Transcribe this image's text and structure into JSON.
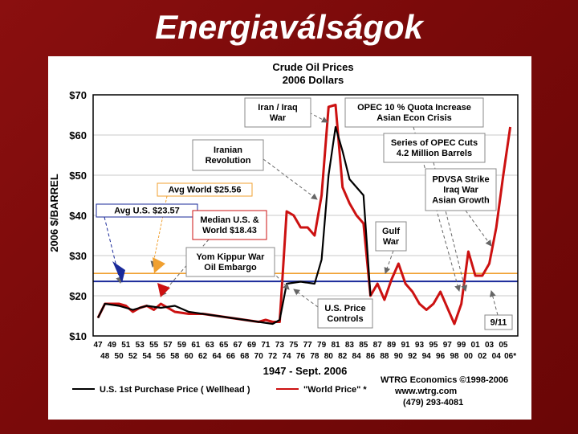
{
  "slide": {
    "title": "Energiaválságok"
  },
  "colors": {
    "us_series": "#000000",
    "world_series": "#cc1111",
    "avg_us_line": "#1a2a9a",
    "avg_world_line": "#f0a030",
    "background": "#8a0f0f"
  },
  "chart_data": {
    "type": "line",
    "title": "Crude Oil Prices",
    "subtitle": "2006 Dollars",
    "ylabel": "2006 $/BARREL",
    "xlabel": "1947 - Sept. 2006",
    "ylim": [
      10,
      70
    ],
    "xlim": [
      1947,
      2006.5
    ],
    "yticks": [
      "$10",
      "$20",
      "$30",
      "$40",
      "$50",
      "$60",
      "$70"
    ],
    "xticks_top": [
      "47",
      "49",
      "51",
      "53",
      "55",
      "57",
      "59",
      "61",
      "63",
      "65",
      "67",
      "69",
      "71",
      "73",
      "75",
      "77",
      "79",
      "81",
      "83",
      "85",
      "87",
      "89",
      "91",
      "93",
      "95",
      "97",
      "99",
      "01",
      "03",
      "05"
    ],
    "xticks_bottom": [
      "48",
      "50",
      "52",
      "54",
      "56",
      "58",
      "60",
      "62",
      "64",
      "66",
      "68",
      "70",
      "72",
      "74",
      "76",
      "78",
      "80",
      "82",
      "84",
      "86",
      "88",
      "90",
      "92",
      "94",
      "96",
      "98",
      "00",
      "02",
      "04",
      "06*"
    ],
    "series": [
      {
        "name": "U.S. 1st Purchase Price ( Wellhead )",
        "x": [
          1947,
          1948,
          1950,
          1952,
          1954,
          1956,
          1958,
          1960,
          1962,
          1964,
          1966,
          1968,
          1970,
          1972,
          1973,
          1974,
          1976,
          1978,
          1979,
          1980,
          1981,
          1982,
          1983,
          1984,
          1985,
          1986
        ],
        "y": [
          14.5,
          18,
          17.5,
          16.5,
          17.5,
          17,
          17.5,
          16,
          15.5,
          15,
          14.5,
          14,
          13.5,
          13,
          14,
          23,
          23.5,
          23,
          29,
          50,
          62,
          56,
          49,
          47,
          45,
          20
        ]
      },
      {
        "name": "\"World Price\" *",
        "x": [
          1947,
          1948,
          1950,
          1951,
          1952,
          1953,
          1954,
          1955,
          1956,
          1957,
          1958,
          1960,
          1962,
          1964,
          1966,
          1968,
          1970,
          1971,
          1972,
          1973,
          1974,
          1975,
          1976,
          1977,
          1978,
          1979,
          1980,
          1981,
          1982,
          1983,
          1984,
          1985,
          1986,
          1987,
          1988,
          1989,
          1990,
          1991,
          1992,
          1993,
          1994,
          1995,
          1996,
          1997,
          1998,
          1999,
          2000,
          2001,
          2002,
          2003,
          2004,
          2005,
          2006
        ],
        "y": [
          14.5,
          18,
          18,
          17.5,
          16,
          17,
          17.5,
          16.5,
          18,
          17,
          16,
          15.5,
          15.5,
          15,
          14.5,
          14,
          13.5,
          14,
          13.5,
          13.5,
          41,
          40,
          37,
          37,
          35,
          45,
          67,
          67.5,
          47,
          43,
          40,
          38,
          20,
          23,
          19,
          24,
          28,
          23,
          21,
          18,
          16.5,
          18,
          21,
          17,
          13,
          18,
          31,
          25,
          25,
          28,
          37,
          50,
          62
        ]
      }
    ],
    "averages": [
      {
        "label": "Avg U.S. $23.57",
        "value": 23.57
      },
      {
        "label": "Avg World $25.56",
        "value": 25.56
      }
    ],
    "annotations": [
      {
        "text": [
          "Iran / Iraq",
          "War"
        ],
        "target_year": 1980
      },
      {
        "text": [
          "OPEC 10 % Quota Increase",
          "Asian Econ Crisis"
        ],
        "target_year": 1998
      },
      {
        "text": [
          "Series of OPEC Cuts",
          "4.2 Million Barrels"
        ],
        "target_year": 1999
      },
      {
        "text": [
          "Iranian",
          "Revolution"
        ],
        "target_year": 1979
      },
      {
        "text": [
          "PDVSA Strike",
          "Iraq War",
          "Asian Growth"
        ],
        "target_year": 2003
      },
      {
        "text": [
          "Avg World $25.56"
        ],
        "target_year": 1955
      },
      {
        "text": [
          "Avg U.S. $23.57"
        ],
        "target_year": 1950
      },
      {
        "text": [
          "Median U.S. &",
          "World $18.43"
        ],
        "target_year": 1957
      },
      {
        "text": [
          "Gulf",
          "War"
        ],
        "target_year": 1990
      },
      {
        "text": [
          "Yom Kippur War",
          "Oil Embargo"
        ],
        "target_year": 1973
      },
      {
        "text": [
          "U.S. Price",
          "Controls"
        ],
        "target_year": 1975
      },
      {
        "text": [
          "9/11"
        ],
        "target_year": 2001
      }
    ],
    "legend": [
      {
        "label": "U.S. 1st Purchase Price ( Wellhead )"
      },
      {
        "label": "\"World Price\" *"
      }
    ],
    "credits": [
      "WTRG Economics ©1998-2006",
      "www.wtrg.com",
      "(479) 293-4081"
    ]
  }
}
